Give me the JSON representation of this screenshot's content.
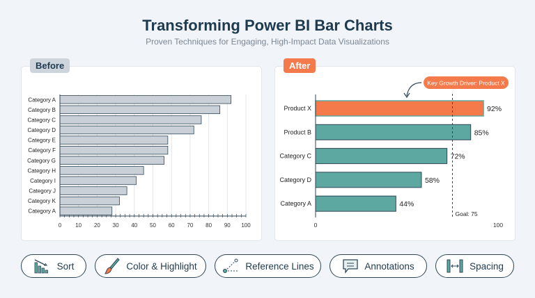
{
  "header": {
    "title": "Transforming Power BI Bar Charts",
    "subtitle": "Proven Techniques for Engaging, High-Impact Data Visualizations"
  },
  "chart_data": [
    {
      "panel_label": "Before",
      "type": "bar",
      "orientation": "horizontal",
      "categories": [
        "Category A",
        "Category B",
        "Category C",
        "Category D",
        "Category E",
        "Category F",
        "Category G",
        "Category H",
        "Category I",
        "Category J",
        "Category K",
        "Category A"
      ],
      "values": [
        92,
        86,
        76,
        72,
        58,
        58,
        56,
        45,
        41,
        36,
        32,
        28
      ],
      "xlim": [
        0,
        100
      ],
      "xticks": [
        0,
        10,
        20,
        30,
        40,
        50,
        60,
        70,
        80,
        90,
        100
      ],
      "grid": true,
      "bar_color": "#c9d0d8"
    },
    {
      "panel_label": "After",
      "type": "bar",
      "orientation": "horizontal",
      "categories": [
        "Product X",
        "Product B",
        "Category C",
        "Category D",
        "Category A"
      ],
      "values": [
        92,
        85,
        72,
        58,
        44
      ],
      "data_labels": [
        "92%",
        "85%",
        "72%",
        "58%",
        "44%"
      ],
      "xlim": [
        0,
        100
      ],
      "xticks": [
        0,
        100
      ],
      "grid": false,
      "bar_color": "#5ea8a2",
      "highlight_color": "#f47a4c",
      "highlight_index": 0,
      "reference_line": {
        "value": 75,
        "label": "Goal: 75"
      },
      "annotation": "Key Growth Driver: Product X"
    }
  ],
  "buttons": [
    {
      "label": "Sort",
      "icon": "sort-bars-icon"
    },
    {
      "label": "Color & Highlight",
      "icon": "paintbrush-icon"
    },
    {
      "label": "Reference Lines",
      "icon": "reference-line-icon"
    },
    {
      "label": "Annotations",
      "icon": "speech-bubble-icon"
    },
    {
      "label": "Spacing",
      "icon": "spacing-icon"
    }
  ]
}
